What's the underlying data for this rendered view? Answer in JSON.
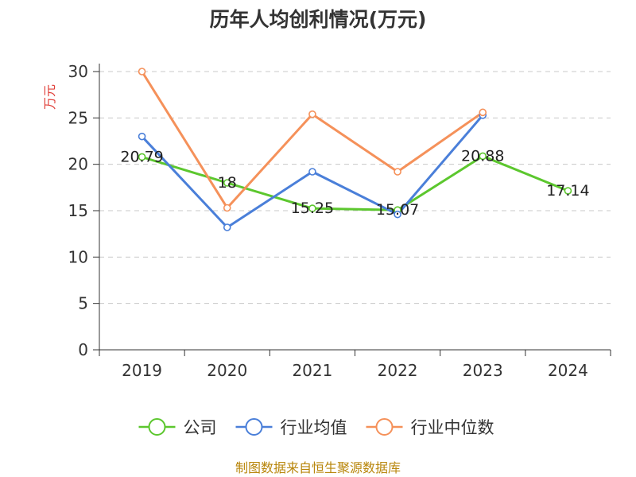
{
  "chart_data": {
    "type": "line",
    "title": "历年人均创利情况(万元)",
    "ylabel": "万元",
    "xlabel": "",
    "categories": [
      "2019",
      "2020",
      "2021",
      "2022",
      "2023",
      "2024"
    ],
    "ylim": [
      0,
      30
    ],
    "yticks": [
      0,
      5,
      10,
      15,
      20,
      25,
      30
    ],
    "grid": true,
    "legend_position": "bottom",
    "series": [
      {
        "name": "公司",
        "color": "#5cc72e",
        "values": [
          20.79,
          18,
          15.25,
          15.07,
          20.88,
          17.14
        ],
        "labels": [
          "20.79",
          "18",
          "15.25",
          "15.07",
          "20.88",
          "17.14"
        ]
      },
      {
        "name": "行业均值",
        "color": "#4a7fd9",
        "values": [
          23.0,
          13.2,
          19.2,
          14.6,
          25.3,
          null
        ]
      },
      {
        "name": "行业中位数",
        "color": "#f5915a",
        "values": [
          30.0,
          15.3,
          25.4,
          19.2,
          25.6,
          null
        ]
      }
    ]
  },
  "source_text": "制图数据来自恒生聚源数据库"
}
